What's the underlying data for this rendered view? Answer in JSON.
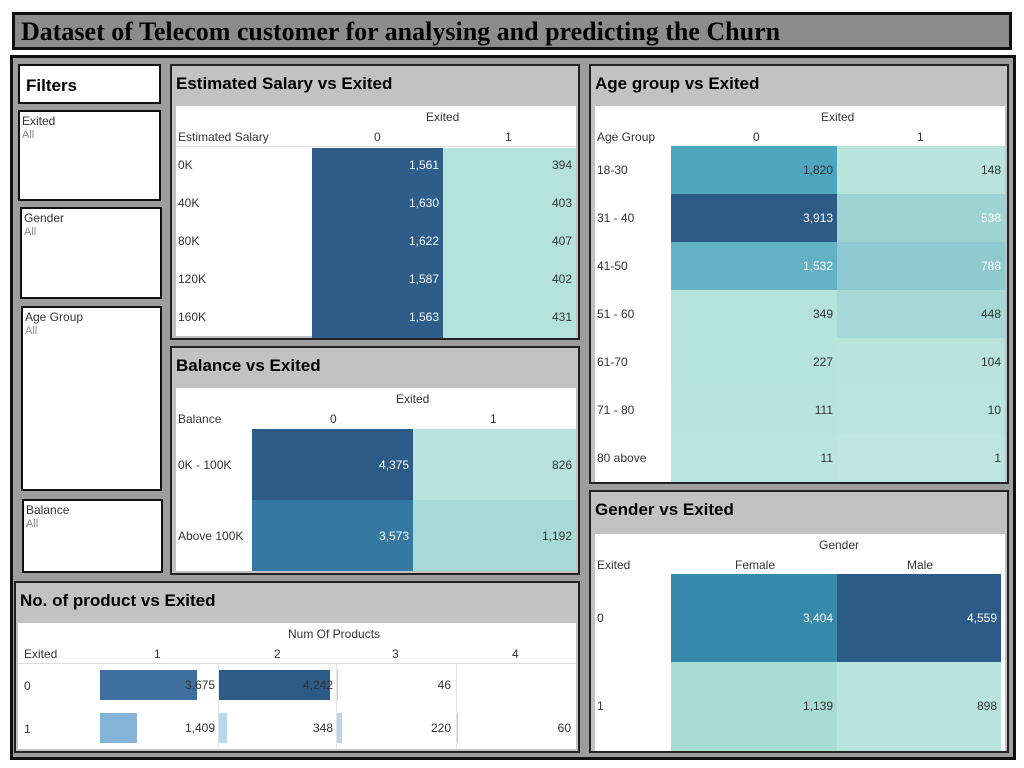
{
  "title": "Dataset of Telecom customer for analysing and predicting the Churn",
  "filters": {
    "heading": "Filters",
    "items": [
      {
        "label": "Exited",
        "value": "All"
      },
      {
        "label": "Gender",
        "value": "All"
      },
      {
        "label": "Age Group",
        "value": "All"
      },
      {
        "label": "Balance",
        "value": "All"
      }
    ]
  },
  "colors": {
    "darkest": "#2d5b87",
    "dark": "#3576a2",
    "mid": "#4fa6be",
    "mid2": "#62b3c3",
    "light": "#a8dbd6",
    "lighter": "#b8e4dc",
    "bar_dark": "#2d5b87",
    "bar_mid": "#3f6f9f",
    "bar_light": "#86b3d8",
    "bar_pale": "#b6d7ee"
  },
  "salary": {
    "title": "Estimated Salary vs Exited",
    "col_group": "Exited",
    "row_header": "Estimated Salary",
    "cols": [
      "0",
      "1"
    ],
    "rows": [
      {
        "label": "0K",
        "values": [
          "1,561",
          "394"
        ]
      },
      {
        "label": "40K",
        "values": [
          "1,630",
          "403"
        ]
      },
      {
        "label": "80K",
        "values": [
          "1,622",
          "407"
        ]
      },
      {
        "label": "120K",
        "values": [
          "1,587",
          "402"
        ]
      },
      {
        "label": "160K",
        "values": [
          "1,563",
          "431"
        ]
      }
    ]
  },
  "balance": {
    "title": "Balance vs Exited",
    "col_group": "Exited",
    "row_header": "Balance",
    "cols": [
      "0",
      "1"
    ],
    "rows": [
      {
        "label": "0K - 100K",
        "values": [
          "4,375",
          "826"
        ]
      },
      {
        "label": "Above 100K",
        "values": [
          "3,573",
          "1,192"
        ]
      }
    ]
  },
  "age": {
    "title": "Age group vs Exited",
    "col_group": "Exited",
    "row_header": "Age Group",
    "cols": [
      "0",
      "1"
    ],
    "rows": [
      {
        "label": "18-30",
        "values": [
          "1,820",
          "148"
        ]
      },
      {
        "label": "31 - 40",
        "values": [
          "3,913",
          "538"
        ]
      },
      {
        "label": "41-50",
        "values": [
          "1,532",
          "788"
        ]
      },
      {
        "label": "51 - 60",
        "values": [
          "349",
          "448"
        ]
      },
      {
        "label": "61-70",
        "values": [
          "227",
          "104"
        ]
      },
      {
        "label": "71 - 80",
        "values": [
          "111",
          "10"
        ]
      },
      {
        "label": "80 above",
        "values": [
          "11",
          "1"
        ]
      }
    ]
  },
  "gender": {
    "title": "Gender vs Exited",
    "col_group": "Gender",
    "row_header": "Exited",
    "cols": [
      "Female",
      "Male"
    ],
    "rows": [
      {
        "label": "0",
        "values": [
          "3,404",
          "4,559"
        ]
      },
      {
        "label": "1",
        "values": [
          "1,139",
          "898"
        ]
      }
    ]
  },
  "products": {
    "title": "No. of product vs Exited",
    "col_group": "Num Of Products",
    "row_header": "Exited",
    "cols": [
      "1",
      "2",
      "3",
      "4"
    ],
    "rows": [
      {
        "label": "0",
        "values": [
          "3,675",
          "4,242",
          "46",
          ""
        ],
        "raw": [
          3675,
          4242,
          46,
          0
        ]
      },
      {
        "label": "1",
        "values": [
          "1,409",
          "348",
          "220",
          "60"
        ],
        "raw": [
          1409,
          348,
          220,
          60
        ]
      }
    ]
  }
}
